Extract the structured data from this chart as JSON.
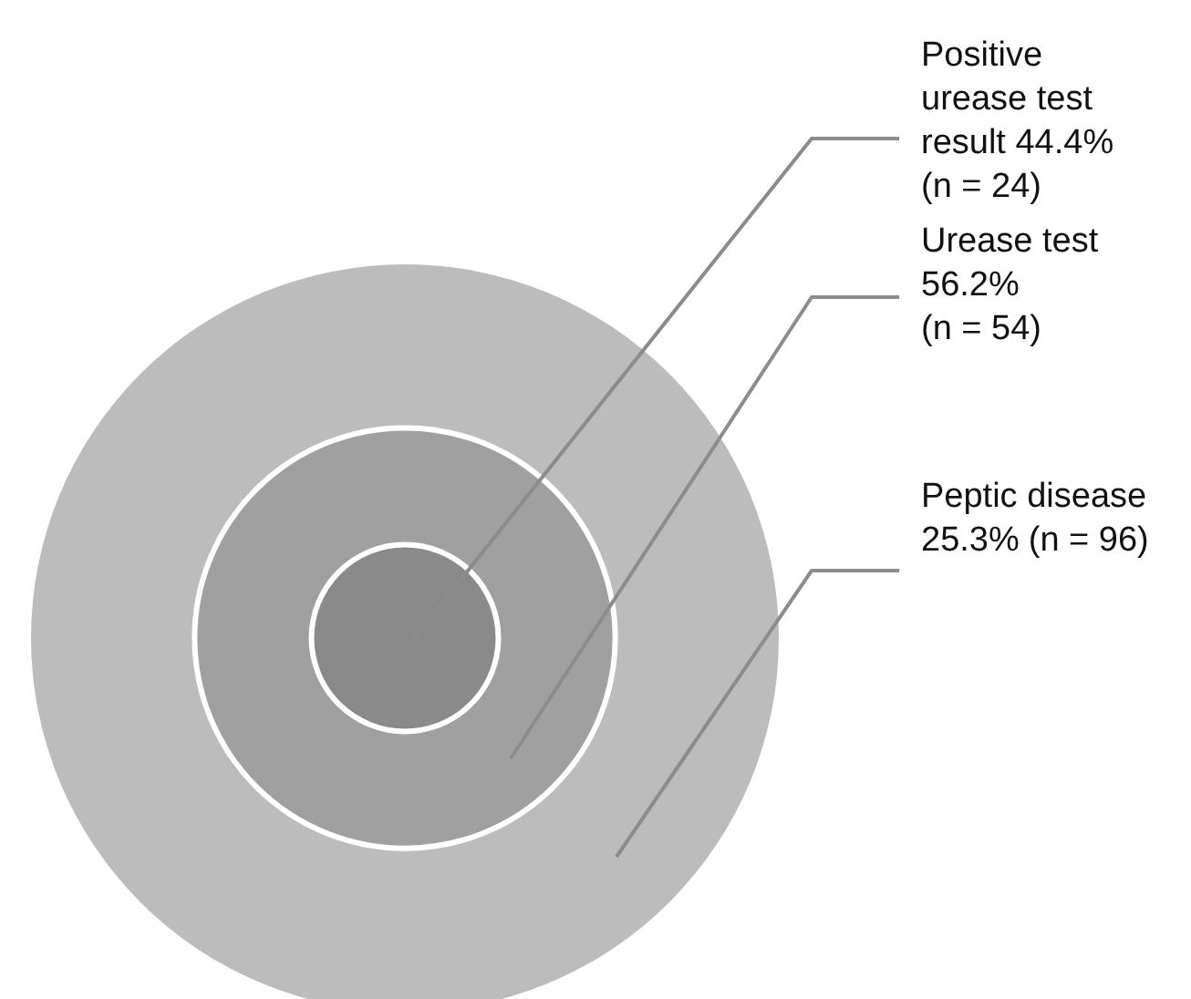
{
  "chart_data": {
    "type": "other",
    "categories": [
      "Positive\nurease test\nresult 44.4%",
      "Urease test\n56.2%",
      "Peptic disease\n25.3%"
    ],
    "values": [
      24,
      54,
      96
    ],
    "value_labels": [
      "(n = 24)",
      "(n = 54)",
      "(n = 96)"
    ],
    "colors": [
      "#8a8a8a",
      "#a0a0a0",
      "#bcbcbc"
    ]
  }
}
